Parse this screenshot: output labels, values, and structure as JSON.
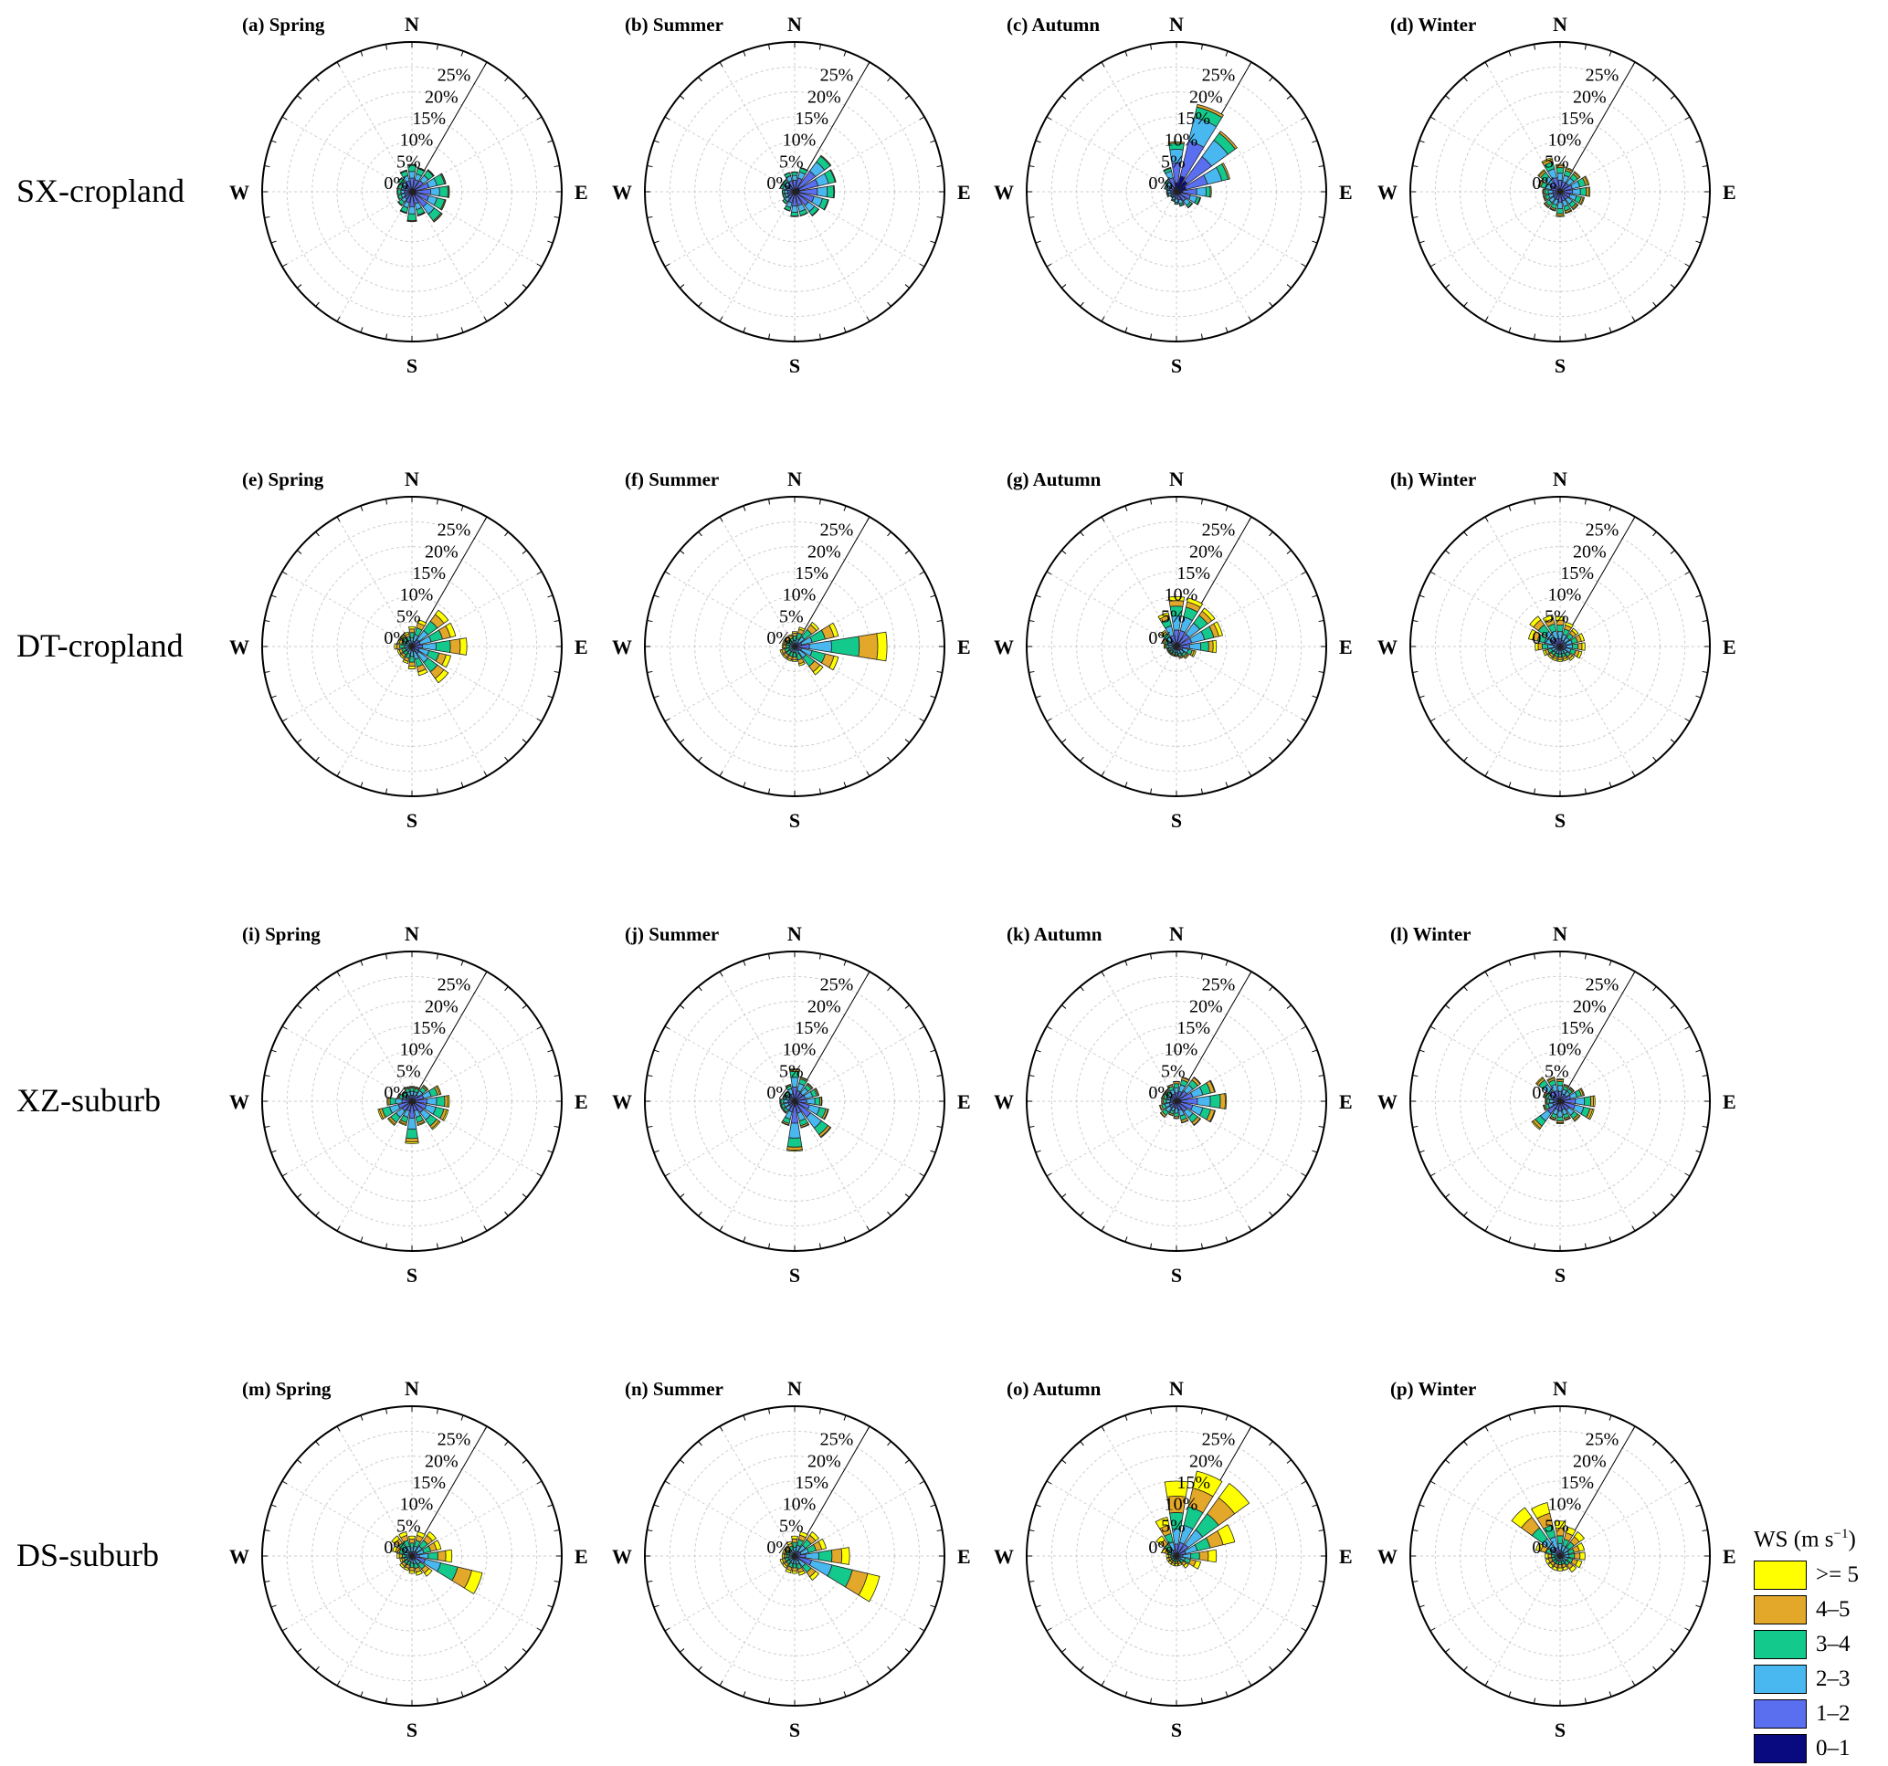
{
  "chart_data": {
    "type": "windrose",
    "rows": [
      {
        "site": "SX-cropland",
        "panels": [
          {
            "label": "(a) Spring",
            "freq": {
              "N": 5.5,
              "NNE": 5,
              "NE": 5.5,
              "ENE": 7,
              "E": 7.5,
              "ESE": 7,
              "SE": 7.5,
              "SSE": 5,
              "S": 6,
              "SSW": 4.5,
              "SW": 3.5,
              "WSW": 3,
              "W": 3,
              "WNW": 3,
              "NW": 3.5,
              "NNW": 4.5
            },
            "shares": [
              0.12,
              0.38,
              0.24,
              0.22,
              0.03,
              0.01
            ]
          },
          {
            "label": "(b) Summer",
            "freq": {
              "N": 4,
              "NNE": 5,
              "NE": 9,
              "ENE": 8.5,
              "E": 8,
              "ESE": 7,
              "SE": 6,
              "SSE": 5,
              "S": 5,
              "SSW": 4,
              "SW": 3,
              "WSW": 2.5,
              "W": 2.5,
              "WNW": 3,
              "NW": 3,
              "NNW": 4
            },
            "shares": [
              0.12,
              0.45,
              0.25,
              0.16,
              0.02,
              0.0
            ]
          },
          {
            "label": "(c) Autumn",
            "freq": {
              "N": 10,
              "NNE": 18,
              "NE": 15,
              "ENE": 11,
              "E": 7,
              "ESE": 5,
              "SE": 4,
              "SSE": 3,
              "S": 2.5,
              "SSW": 2,
              "SW": 1.5,
              "WSW": 2,
              "W": 2,
              "WNW": 2.5,
              "NW": 3,
              "NNW": 5
            },
            "shares": [
              0.18,
              0.4,
              0.27,
              0.12,
              0.03,
              0.0
            ]
          },
          {
            "label": "(d) Winter",
            "freq": {
              "N": 5.5,
              "NNE": 5,
              "NE": 5,
              "ENE": 6,
              "E": 6,
              "ESE": 5,
              "SE": 4.5,
              "SSE": 4.5,
              "S": 5,
              "SSW": 4,
              "SW": 4,
              "WSW": 3.5,
              "W": 3.5,
              "WNW": 4.5,
              "NW": 5.5,
              "NNW": 7
            },
            "shares": [
              0.1,
              0.32,
              0.26,
              0.2,
              0.08,
              0.04
            ]
          }
        ]
      },
      {
        "site": "DT-cropland",
        "panels": [
          {
            "label": "(e) Spring",
            "freq": {
              "N": 4,
              "NNE": 5.5,
              "NE": 9,
              "ENE": 9,
              "E": 11,
              "ESE": 8,
              "SE": 9,
              "SSE": 6,
              "S": 4.5,
              "SSW": 3.5,
              "SW": 3,
              "WSW": 3,
              "W": 3.5,
              "WNW": 3,
              "NW": 3,
              "NNW": 3
            },
            "shares": [
              0.04,
              0.15,
              0.25,
              0.26,
              0.18,
              0.12
            ]
          },
          {
            "label": "(f) Summer",
            "freq": {
              "N": 3,
              "NNE": 4,
              "NE": 6,
              "ENE": 9,
              "E": 18.5,
              "ESE": 9,
              "SE": 7,
              "SSE": 4,
              "S": 3,
              "SSW": 3,
              "SW": 3,
              "WSW": 3,
              "W": 2.5,
              "WNW": 2.5,
              "NW": 2.5,
              "NNW": 2.5
            },
            "shares": [
              0.04,
              0.12,
              0.24,
              0.3,
              0.2,
              0.1
            ]
          },
          {
            "label": "(g) Autumn",
            "freq": {
              "N": 10,
              "NNE": 10,
              "NE": 9.5,
              "ENE": 9.5,
              "E": 8,
              "ESE": 4,
              "SE": 3,
              "SSE": 2.5,
              "S": 2,
              "SSW": 2,
              "SW": 2,
              "WSW": 2,
              "W": 2.5,
              "WNW": 3,
              "NW": 4,
              "NNW": 7
            },
            "shares": [
              0.08,
              0.25,
              0.28,
              0.2,
              0.11,
              0.08
            ]
          },
          {
            "label": "(h) Winter",
            "freq": {
              "N": 6,
              "NNE": 5,
              "NE": 4.5,
              "ENE": 5,
              "E": 5,
              "ESE": 4.5,
              "SE": 3.5,
              "SSE": 3,
              "S": 3,
              "SSW": 3,
              "SW": 3,
              "WSW": 3.5,
              "W": 5,
              "WNW": 6.5,
              "NW": 7.5,
              "NNW": 6.5
            },
            "shares": [
              0.06,
              0.2,
              0.24,
              0.22,
              0.16,
              0.12
            ]
          }
        ]
      },
      {
        "site": "XZ-suburb",
        "panels": [
          {
            "label": "(i) Spring",
            "freq": {
              "N": 3,
              "NNE": 3,
              "NE": 4,
              "ENE": 6,
              "E": 7.5,
              "ESE": 7.5,
              "SE": 7,
              "SSE": 5,
              "S": 8.5,
              "SSW": 5,
              "SW": 6,
              "WSW": 7,
              "W": 5,
              "WNW": 3,
              "NW": 2.5,
              "NNW": 3
            },
            "shares": [
              0.1,
              0.3,
              0.26,
              0.22,
              0.08,
              0.04
            ]
          },
          {
            "label": "(j) Summer",
            "freq": {
              "N": 6.5,
              "NNE": 5,
              "NE": 4.5,
              "ENE": 5,
              "E": 5.5,
              "ESE": 7,
              "SE": 9,
              "SSE": 5.5,
              "S": 10,
              "SSW": 5,
              "SW": 3,
              "WSW": 3,
              "W": 3,
              "WNW": 2.5,
              "NW": 2.5,
              "NNW": 3.5
            },
            "shares": [
              0.1,
              0.34,
              0.3,
              0.18,
              0.06,
              0.02
            ]
          },
          {
            "label": "(k) Autumn",
            "freq": {
              "N": 4,
              "NNE": 5,
              "NE": 6,
              "ENE": 8,
              "E": 10,
              "ESE": 8,
              "SE": 6,
              "SSE": 4.5,
              "S": 3.5,
              "SSW": 3,
              "SW": 4,
              "WSW": 3.5,
              "W": 3,
              "WNW": 3,
              "NW": 3,
              "NNW": 3.5
            },
            "shares": [
              0.1,
              0.32,
              0.26,
              0.2,
              0.1,
              0.02
            ]
          },
          {
            "label": "(l) Winter",
            "freq": {
              "N": 4.5,
              "NNE": 3.5,
              "NE": 3.5,
              "ENE": 5,
              "E": 7,
              "ESE": 7,
              "SE": 5,
              "SSE": 4,
              "S": 4.5,
              "SSW": 4,
              "SW": 7,
              "WSW": 3.5,
              "W": 3,
              "WNW": 3.5,
              "NW": 6,
              "NNW": 5
            },
            "shares": [
              0.12,
              0.32,
              0.26,
              0.18,
              0.08,
              0.04
            ]
          }
        ]
      },
      {
        "site": "DS-suburb",
        "panels": [
          {
            "label": "(m) Spring",
            "freq": {
              "N": 4,
              "NNE": 5,
              "NE": 6,
              "ENE": 6,
              "E": 8,
              "ESE": 14.5,
              "SE": 5,
              "SSE": 4,
              "S": 3.5,
              "SSW": 3,
              "SW": 3,
              "WSW": 2.5,
              "W": 3,
              "WNW": 4,
              "NW": 5,
              "NNW": 5
            },
            "shares": [
              0.05,
              0.14,
              0.22,
              0.24,
              0.2,
              0.15
            ]
          },
          {
            "label": "(n) Summer",
            "freq": {
              "N": 4,
              "NNE": 5,
              "NE": 6,
              "ENE": 6.5,
              "E": 11,
              "ESE": 17.5,
              "SE": 6,
              "SSE": 4,
              "S": 3.5,
              "SSW": 3.5,
              "SW": 3,
              "WSW": 3,
              "W": 2.5,
              "WNW": 2.5,
              "NW": 2.5,
              "NNW": 3
            },
            "shares": [
              0.05,
              0.15,
              0.24,
              0.24,
              0.18,
              0.14
            ]
          },
          {
            "label": "(o) Autumn",
            "freq": {
              "N": 15,
              "NNE": 17.5,
              "NE": 18,
              "ENE": 12,
              "E": 8,
              "ESE": 5,
              "SE": 3,
              "SSE": 2,
              "S": 2,
              "SSW": 2,
              "SW": 2,
              "WSW": 2,
              "W": 2,
              "WNW": 3,
              "NW": 5,
              "NNW": 8
            },
            "shares": [
              0.04,
              0.12,
              0.2,
              0.22,
              0.22,
              0.2
            ]
          },
          {
            "label": "(p) Winter",
            "freq": {
              "N": 7,
              "NNE": 6,
              "NE": 6,
              "ENE": 5,
              "E": 5,
              "ESE": 4.5,
              "SE": 4,
              "SSE": 3,
              "S": 3,
              "SSW": 3,
              "SW": 3,
              "WSW": 3,
              "W": 3,
              "WNW": 5,
              "NW": 12,
              "NNW": 11
            },
            "shares": [
              0.04,
              0.12,
              0.2,
              0.22,
              0.22,
              0.2
            ]
          }
        ]
      }
    ],
    "directions": [
      "N",
      "NNE",
      "NE",
      "ENE",
      "E",
      "ESE",
      "SE",
      "SSE",
      "S",
      "SSW",
      "SW",
      "WSW",
      "W",
      "WNW",
      "NW",
      "NNW"
    ],
    "radial_ticks": [
      "0%",
      "5%",
      "10%",
      "15%",
      "20%",
      "25%"
    ],
    "radial_values": [
      0,
      5,
      10,
      15,
      20,
      25
    ],
    "rmax": 30,
    "compass_labels": [
      "N",
      "E",
      "S",
      "W"
    ],
    "legend": {
      "title": "WS (m s",
      "title_sup": "−1",
      "title_end": ")",
      "bins": [
        {
          "label": ">= 5",
          "color": "#ffff00"
        },
        {
          "label": "4–5",
          "color": "#e3a829"
        },
        {
          "label": "3–4",
          "color": "#14c98c"
        },
        {
          "label": "2–3",
          "color": "#4ab8f0"
        },
        {
          "label": "1–2",
          "color": "#5a6ef0"
        },
        {
          "label": "0–1",
          "color": "#0a0a80"
        }
      ]
    }
  }
}
